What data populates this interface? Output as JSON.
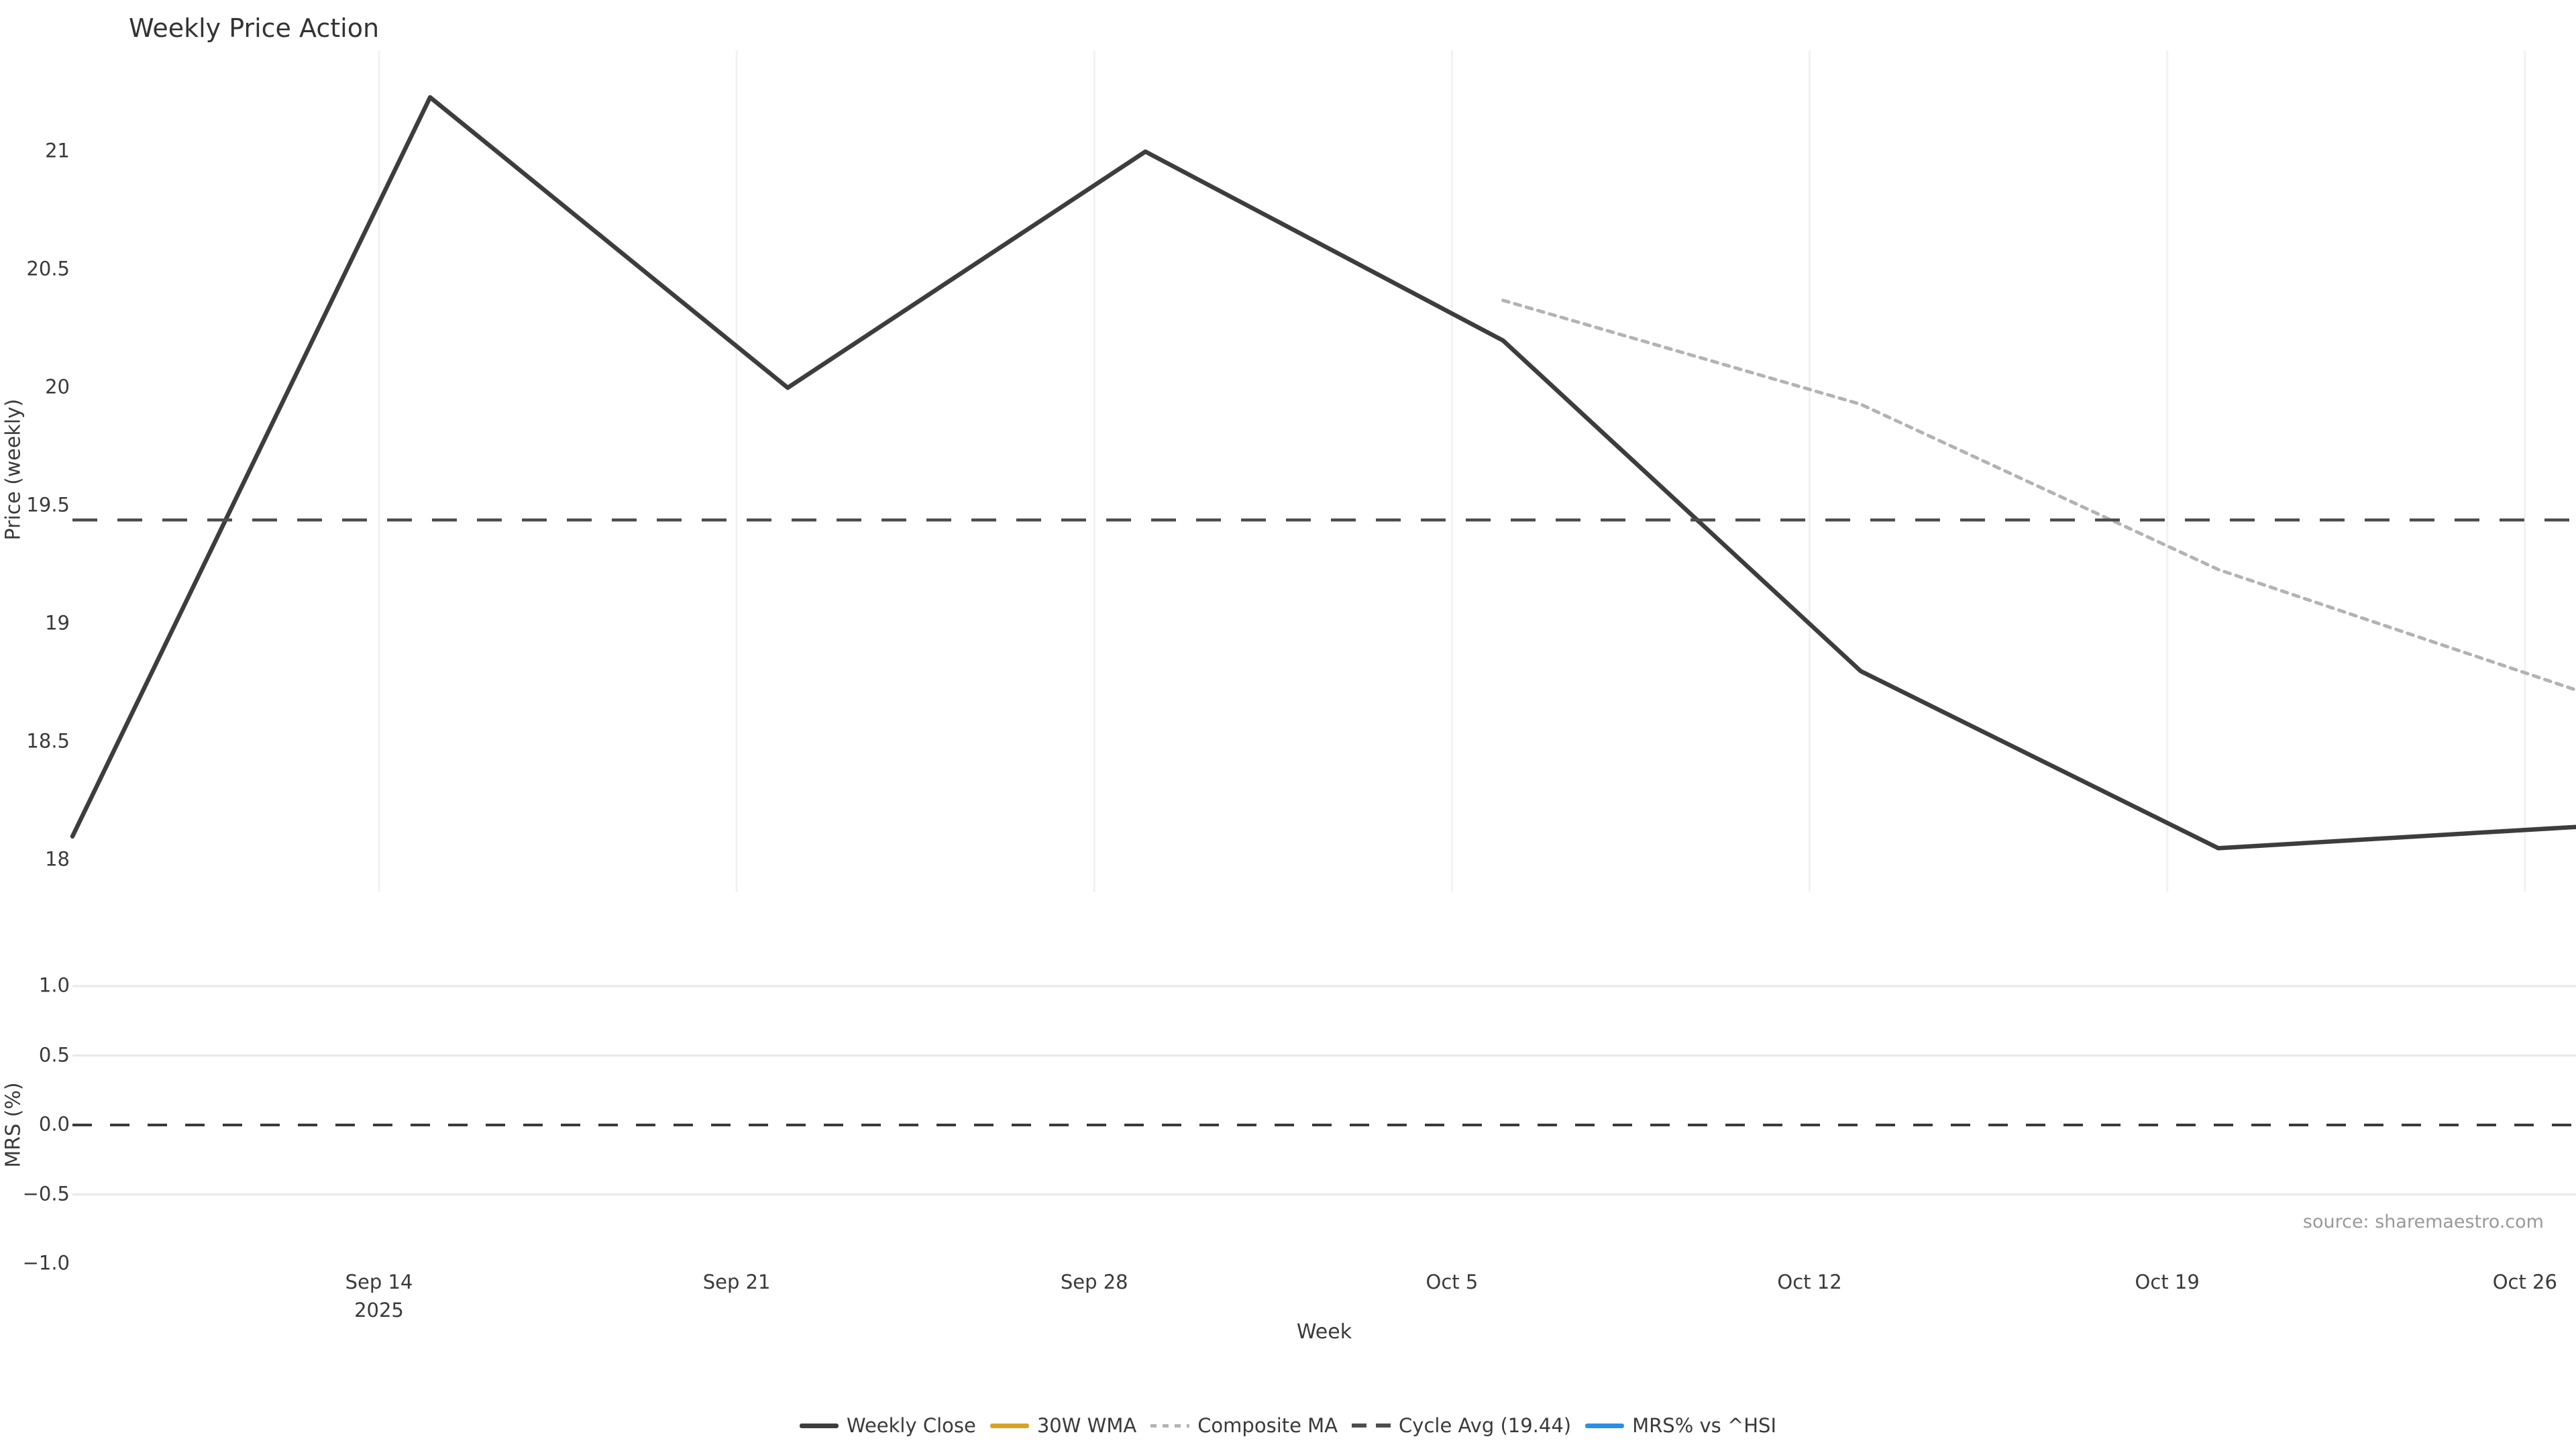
{
  "title": "Weekly Price Action",
  "source": "source: sharemaestro.com",
  "colors": {
    "text": "#3a3a3a",
    "title_text": "#333333",
    "weekly_close": "#3d3d3d",
    "wma_30w": "#d9a425",
    "composite_ma": "#b3b3b3",
    "cycle_avg": "#4d4d4d",
    "mrs_line": "#2a8fe8",
    "grid_vertical": "#f2f2f2",
    "grid_horizontal": "#e9e9e9",
    "source_text": "#999999"
  },
  "price_panel": {
    "ylabel": "Price (weekly)",
    "yticks": [
      {
        "label": "21",
        "value": 21.0
      },
      {
        "label": "20.5",
        "value": 20.5
      },
      {
        "label": "20",
        "value": 20.0
      },
      {
        "label": "19.5",
        "value": 19.5
      },
      {
        "label": "19",
        "value": 19.0
      },
      {
        "label": "18.5",
        "value": 18.5
      },
      {
        "label": "18",
        "value": 18.0
      }
    ]
  },
  "mrs_panel": {
    "ylabel": "MRS (%)",
    "yticks": [
      {
        "label": "1.0",
        "value": 1.0
      },
      {
        "label": "0.5",
        "value": 0.5
      },
      {
        "label": "0.0",
        "value": 0.0
      },
      {
        "label": "−0.5",
        "value": -0.5
      },
      {
        "label": "−1.0",
        "value": -1.0
      }
    ]
  },
  "x_axis": {
    "label": "Week",
    "ticks": [
      {
        "label": "Sep 14",
        "sub": "2025",
        "day": 6
      },
      {
        "label": "Sep 21",
        "sub": "",
        "day": 13
      },
      {
        "label": "Sep 28",
        "sub": "",
        "day": 20
      },
      {
        "label": "Oct 5",
        "sub": "",
        "day": 27
      },
      {
        "label": "Oct 12",
        "sub": "",
        "day": 34
      },
      {
        "label": "Oct 19",
        "sub": "",
        "day": 41
      },
      {
        "label": "Oct 26",
        "sub": "",
        "day": 48
      }
    ]
  },
  "legend": [
    {
      "label": "Weekly Close",
      "style": "solid",
      "color": "#3d3d3d"
    },
    {
      "label": "30W WMA",
      "style": "solid",
      "color": "#d9a425"
    },
    {
      "label": "Composite MA",
      "style": "dotted",
      "color": "#b3b3b3"
    },
    {
      "label": "Cycle Avg (19.44)",
      "style": "dashed",
      "color": "#4d4d4d"
    },
    {
      "label": "MRS% vs ^HSI",
      "style": "solid",
      "color": "#2a8fe8"
    }
  ],
  "chart_data": [
    {
      "type": "line",
      "panel": "price",
      "name": "Weekly Close",
      "style": "solid",
      "x_dates": [
        "Sep 8",
        "Sep 15",
        "Sep 22",
        "Sep 29",
        "Oct 6",
        "Oct 13",
        "Oct 20",
        "Oct 27"
      ],
      "x_days": [
        0,
        7,
        14,
        21,
        28,
        35,
        42,
        49
      ],
      "values": [
        18.1,
        21.23,
        20.0,
        21.0,
        20.2,
        18.8,
        18.05,
        18.14
      ]
    },
    {
      "type": "line",
      "panel": "price",
      "name": "30W WMA",
      "style": "solid",
      "x_dates": [],
      "x_days": [],
      "values": [],
      "note": "in legend but no visible data within plotted range"
    },
    {
      "type": "line",
      "panel": "price",
      "name": "Composite MA",
      "style": "dotted",
      "x_dates": [
        "Oct 6",
        "Oct 13",
        "Oct 20",
        "Oct 27"
      ],
      "x_days": [
        28,
        35,
        42,
        49
      ],
      "values": [
        20.37,
        19.93,
        19.23,
        18.72
      ]
    },
    {
      "type": "hline",
      "panel": "price",
      "name": "Cycle Avg",
      "style": "dashed",
      "value": 19.44
    },
    {
      "type": "hline",
      "panel": "mrs",
      "name": "MRS zero line",
      "style": "dashed",
      "value": 0.0
    },
    {
      "type": "line",
      "panel": "mrs",
      "name": "MRS% vs ^HSI",
      "style": "solid",
      "x_dates": [],
      "x_days": [],
      "values": [],
      "note": "in legend but no visible data within plotted range"
    }
  ],
  "axes_meta": {
    "price_ylim": [
      17.86,
      21.43
    ],
    "mrs_ylim": [
      -1.05,
      1.15
    ],
    "x_start_date": "Sep 8 2025",
    "x_end_date": "Oct 27 2025",
    "grid": "vertical weekly gridlines on price panel, horizontal gridlines on MRS panel"
  }
}
